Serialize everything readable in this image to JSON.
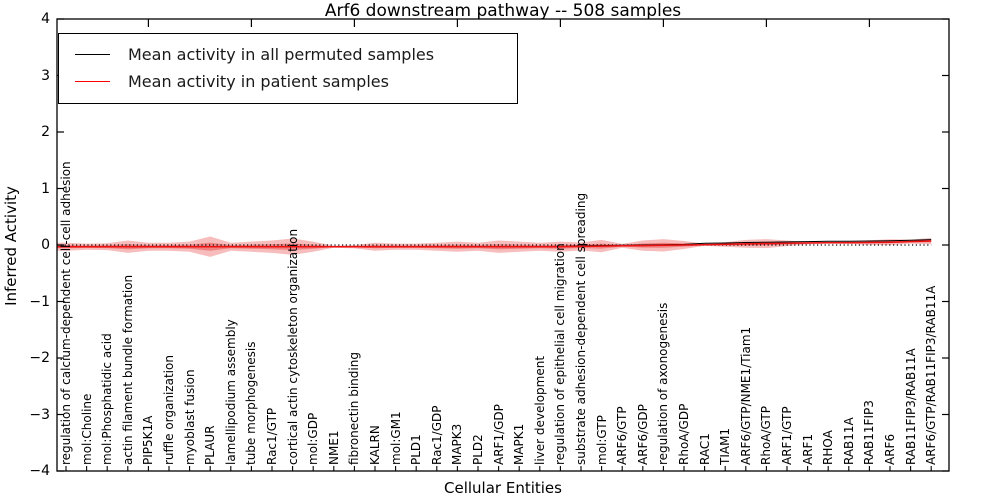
{
  "title": "Arf6 downstream pathway -- 508 samples",
  "axes": {
    "ylabel": "Inferred Activity",
    "xlabel": "Cellular Entities"
  },
  "legend": {
    "items": [
      {
        "label": "Mean activity in all permuted samples",
        "color": "#000000"
      },
      {
        "label": "Mean activity in patient samples",
        "color": "#ff0000"
      }
    ]
  },
  "chart_data": {
    "type": "line",
    "title": "Arf6 downstream pathway -- 508 samples",
    "xlabel": "Cellular Entities",
    "ylabel": "Inferred Activity",
    "ylim": [
      -4,
      4
    ],
    "yticks": [
      4,
      3,
      2,
      1,
      0,
      -1,
      -2,
      -3,
      -4
    ],
    "grid": false,
    "legend_position": "upper left",
    "categories": [
      "regulation of calcium-dependent cell-cell adhesion",
      "mol:Choline",
      "mol:Phosphatidic acid",
      "actin filament bundle formation",
      "PIP5K1A",
      "ruffle organization",
      "myoblast fusion",
      "PLAUR",
      "lamellipodium assembly",
      "tube morphogenesis",
      "Rac1/GTP",
      "cortical actin cytoskeleton organization",
      "mol:GDP",
      "NME1",
      "fibronectin binding",
      "KALRN",
      "mol:GM1",
      "PLD1",
      "Rac1/GDP",
      "MAPK3",
      "PLD2",
      "ARF1/GDP",
      "MAPK1",
      "liver development",
      "regulation of epithelial cell migration",
      "substrate adhesion-dependent cell spreading",
      "mol:GTP",
      "ARF6/GTP",
      "ARF6/GDP",
      "regulation of axonogenesis",
      "RhoA/GDP",
      "RAC1",
      "TIAM1",
      "ARF6/GTP/NME1/Tiam1",
      "RhoA/GTP",
      "ARF1/GTP",
      "ARF1",
      "RHOA",
      "RAB11A",
      "RAB11FIP3",
      "ARF6",
      "RAB11FIP3/RAB11A",
      "ARF6/GTP/RAB11FIP3/RAB11A"
    ],
    "series": [
      {
        "name": "Mean activity in all permuted samples",
        "color": "#000000",
        "style": "solid",
        "values": [
          -0.03,
          -0.03,
          -0.03,
          -0.03,
          -0.03,
          -0.03,
          -0.03,
          -0.03,
          -0.03,
          -0.03,
          -0.03,
          -0.03,
          -0.03,
          -0.03,
          -0.03,
          -0.03,
          -0.03,
          -0.03,
          -0.03,
          -0.03,
          -0.03,
          -0.03,
          -0.03,
          -0.03,
          -0.03,
          -0.015,
          -0.01,
          -0.005,
          0.0,
          0.005,
          0.01,
          0.03,
          0.035,
          0.045,
          0.05,
          0.055,
          0.06,
          0.065,
          0.065,
          0.07,
          0.075,
          0.085,
          0.095
        ]
      },
      {
        "name": "Mean activity in patient samples",
        "color": "#ee1111",
        "style": "solid",
        "values": [
          -0.03,
          -0.03,
          -0.03,
          -0.03,
          -0.03,
          -0.03,
          -0.03,
          -0.03,
          -0.03,
          -0.03,
          -0.03,
          -0.03,
          -0.03,
          -0.03,
          -0.03,
          -0.03,
          -0.03,
          -0.03,
          -0.03,
          -0.03,
          -0.03,
          -0.03,
          -0.03,
          -0.03,
          -0.03,
          -0.025,
          -0.02,
          -0.015,
          -0.01,
          -0.005,
          0.0,
          0.005,
          0.01,
          0.02,
          0.025,
          0.03,
          0.035,
          0.04,
          0.04,
          0.045,
          0.05,
          0.06,
          0.07
        ]
      }
    ],
    "band": {
      "name": "patient activity spread around mean",
      "color": "#e32222",
      "outer_half_width": [
        0.07,
        0.055,
        0.06,
        0.11,
        0.07,
        0.07,
        0.09,
        0.18,
        0.07,
        0.09,
        0.11,
        0.145,
        0.09,
        0.02,
        0.03,
        0.07,
        0.055,
        0.055,
        0.07,
        0.09,
        0.07,
        0.11,
        0.09,
        0.07,
        0.09,
        0.07,
        0.11,
        0.035,
        0.09,
        0.11,
        0.07,
        0.02,
        0.04,
        0.07,
        0.08,
        0.05,
        0.02,
        0.015,
        0.02,
        0.04,
        0.05,
        0.035,
        0.055
      ],
      "inner_half_width_factor": 0.4
    },
    "zero_line": {
      "y": 0,
      "style": "dotted",
      "color": "#000000"
    }
  }
}
